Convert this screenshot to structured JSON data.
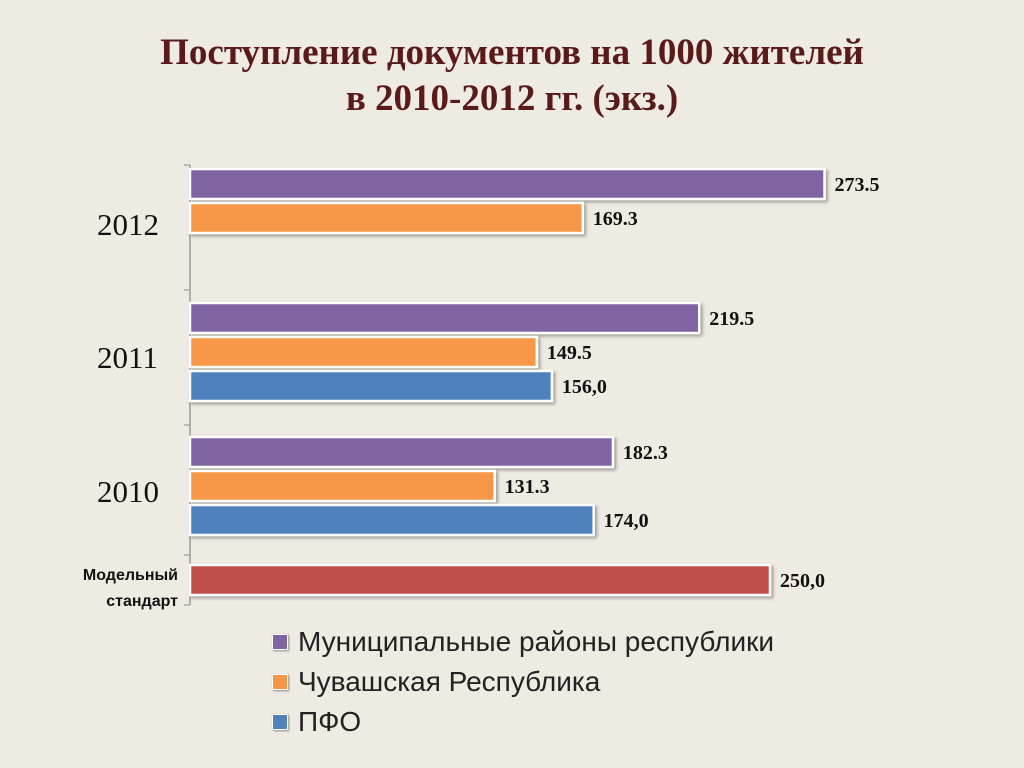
{
  "title": {
    "line1": "Поступление документов на 1000 жителей",
    "line2": "в 2010-2012 гг. (экз.)"
  },
  "colors": {
    "municipal": "#8064a2",
    "chuvash": "#f79646",
    "pfo": "#4f81bd",
    "standard": "#c0504d"
  },
  "chart_data": {
    "type": "bar",
    "orientation": "horizontal",
    "title": "Поступление документов на 1000 жителей в 2010-2012 гг. (экз.)",
    "categories": [
      "2012",
      "2011",
      "2010",
      "Модельный стандарт"
    ],
    "series": [
      {
        "name": "Муниципальные районы республики",
        "color": "#8064a2",
        "values": [
          273.5,
          219.5,
          182.3,
          null
        ],
        "labels": [
          "273.5",
          "219.5",
          "182.3",
          null
        ]
      },
      {
        "name": "Чувашская Республика",
        "color": "#f79646",
        "values": [
          169.3,
          149.5,
          131.3,
          null
        ],
        "labels": [
          "169.3",
          "149.5",
          "131.3",
          null
        ]
      },
      {
        "name": "ПФО",
        "color": "#4f81bd",
        "values": [
          null,
          156.0,
          174.0,
          null
        ],
        "labels": [
          null,
          "156,0",
          "174,0",
          null
        ]
      },
      {
        "name": "",
        "color": "#c0504d",
        "values": [
          null,
          null,
          null,
          250.0
        ],
        "labels": [
          null,
          null,
          null,
          "250,0"
        ]
      }
    ],
    "xlim": [
      0,
      280
    ],
    "grid": false,
    "legend_position": "bottom"
  }
}
